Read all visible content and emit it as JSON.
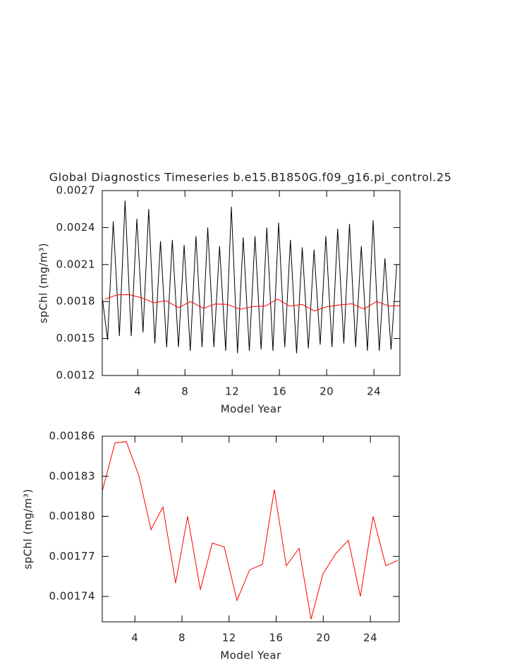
{
  "chart_data": [
    {
      "type": "line",
      "title": "Global Diagnostics Timeseries b.e15.B1850G.f09_g16.pi_control.25",
      "x_label": "Model Year",
      "y_label": "spChl (mg/m³)",
      "xlim": [
        1,
        26.2
      ],
      "xticks": [
        4,
        8,
        12,
        16,
        20,
        24
      ],
      "ylim": [
        0.0012,
        0.0027
      ],
      "yticks": [
        0.0012,
        0.0015,
        0.0018,
        0.0021,
        0.0024,
        0.0027
      ],
      "series": [
        {
          "color": "#000000",
          "x": [
            1.0,
            1.45,
            1.93,
            2.45,
            2.93,
            3.45,
            3.93,
            4.45,
            4.93,
            5.45,
            5.93,
            6.45,
            6.93,
            7.45,
            7.93,
            8.45,
            8.93,
            9.45,
            9.93,
            10.45,
            10.93,
            11.45,
            11.93,
            12.45,
            12.93,
            13.45,
            13.93,
            14.45,
            14.93,
            15.45,
            15.93,
            16.45,
            16.93,
            17.45,
            17.93,
            18.45,
            18.93,
            19.45,
            19.93,
            20.45,
            20.93,
            21.45,
            21.93,
            22.45,
            22.93,
            23.45,
            23.93,
            24.45,
            24.93,
            25.45,
            25.93
          ],
          "values": [
            0.00183,
            0.00149,
            0.00245,
            0.00152,
            0.00262,
            0.00152,
            0.00247,
            0.00155,
            0.00255,
            0.00146,
            0.00229,
            0.00143,
            0.0023,
            0.00143,
            0.00226,
            0.0014,
            0.00233,
            0.00143,
            0.0024,
            0.00143,
            0.00225,
            0.0014,
            0.00257,
            0.00138,
            0.00232,
            0.0014,
            0.00233,
            0.00141,
            0.0024,
            0.0014,
            0.00244,
            0.00143,
            0.0023,
            0.00138,
            0.00224,
            0.00142,
            0.00222,
            0.00145,
            0.00233,
            0.00143,
            0.00239,
            0.00146,
            0.00243,
            0.00143,
            0.00225,
            0.0014,
            0.00246,
            0.0014,
            0.00215,
            0.00141,
            0.0021
          ]
        },
        {
          "color": "#ff0000",
          "x": [
            1.23,
            2.31,
            3.27,
            4.35,
            5.37,
            6.38,
            7.46,
            8.48,
            9.56,
            10.57,
            11.59,
            12.67,
            13.75,
            14.83,
            15.84,
            16.86,
            17.94,
            18.96,
            19.98,
            21.05,
            22.13,
            23.15,
            24.23,
            25.31,
            26.2
          ],
          "values": [
            0.001819,
            0.001855,
            0.001856,
            0.00183,
            0.00179,
            0.001807,
            0.00175,
            0.0018,
            0.001745,
            0.00178,
            0.001777,
            0.001737,
            0.00176,
            0.001764,
            0.00182,
            0.001763,
            0.001776,
            0.001723,
            0.001757,
            0.001772,
            0.001782,
            0.00174,
            0.0018,
            0.001763,
            0.001767
          ]
        }
      ]
    },
    {
      "type": "line",
      "x_label": "Model Year",
      "y_label": "spChl (mg/m³)",
      "xlim": [
        1.23,
        26.45
      ],
      "xticks": [
        4,
        8,
        12,
        16,
        20,
        24
      ],
      "ylim": [
        0.001721,
        0.00186
      ],
      "yticks": [
        0.00174,
        0.00177,
        {
          "value": 0.0018,
          "label": "0.00180"
        },
        0.00183,
        0.00186
      ],
      "series": [
        {
          "color": "#ff0000",
          "x": [
            1.23,
            2.31,
            3.27,
            4.35,
            5.37,
            6.38,
            7.46,
            8.48,
            9.56,
            10.57,
            11.59,
            12.67,
            13.75,
            14.83,
            15.84,
            16.86,
            17.94,
            18.96,
            19.98,
            21.05,
            22.13,
            23.15,
            24.23,
            25.31,
            26.32
          ],
          "values": [
            0.001819,
            0.001855,
            0.001856,
            0.00183,
            0.00179,
            0.001807,
            0.00175,
            0.0018,
            0.001745,
            0.00178,
            0.001777,
            0.001737,
            0.00176,
            0.001764,
            0.00182,
            0.001763,
            0.001776,
            0.001723,
            0.001757,
            0.001772,
            0.001782,
            0.00174,
            0.0018,
            0.001763,
            0.001767
          ]
        }
      ]
    }
  ]
}
